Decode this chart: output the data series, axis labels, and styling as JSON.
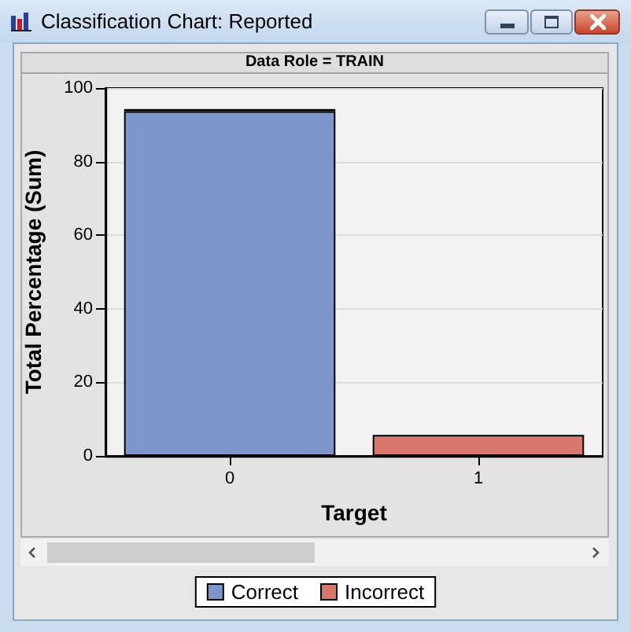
{
  "chart_data": {
    "type": "bar",
    "title": "Classification Chart: Reported",
    "subtitle": "Data Role = TRAIN",
    "xlabel": "Target",
    "ylabel": "Total Percentage (Sum)",
    "categories": [
      "0",
      "1"
    ],
    "series": [
      {
        "name": "Correct",
        "color": "#7d97cc",
        "values": [
          93.7,
          0
        ]
      },
      {
        "name": "Incorrect",
        "color": "#d9776b",
        "values": [
          0.6,
          5.7
        ]
      }
    ],
    "stacked": true,
    "ylim": [
      0,
      100
    ],
    "yticks": [
      0,
      20,
      40,
      60,
      80,
      100
    ],
    "grid": "y",
    "legend": "bottom"
  }
}
